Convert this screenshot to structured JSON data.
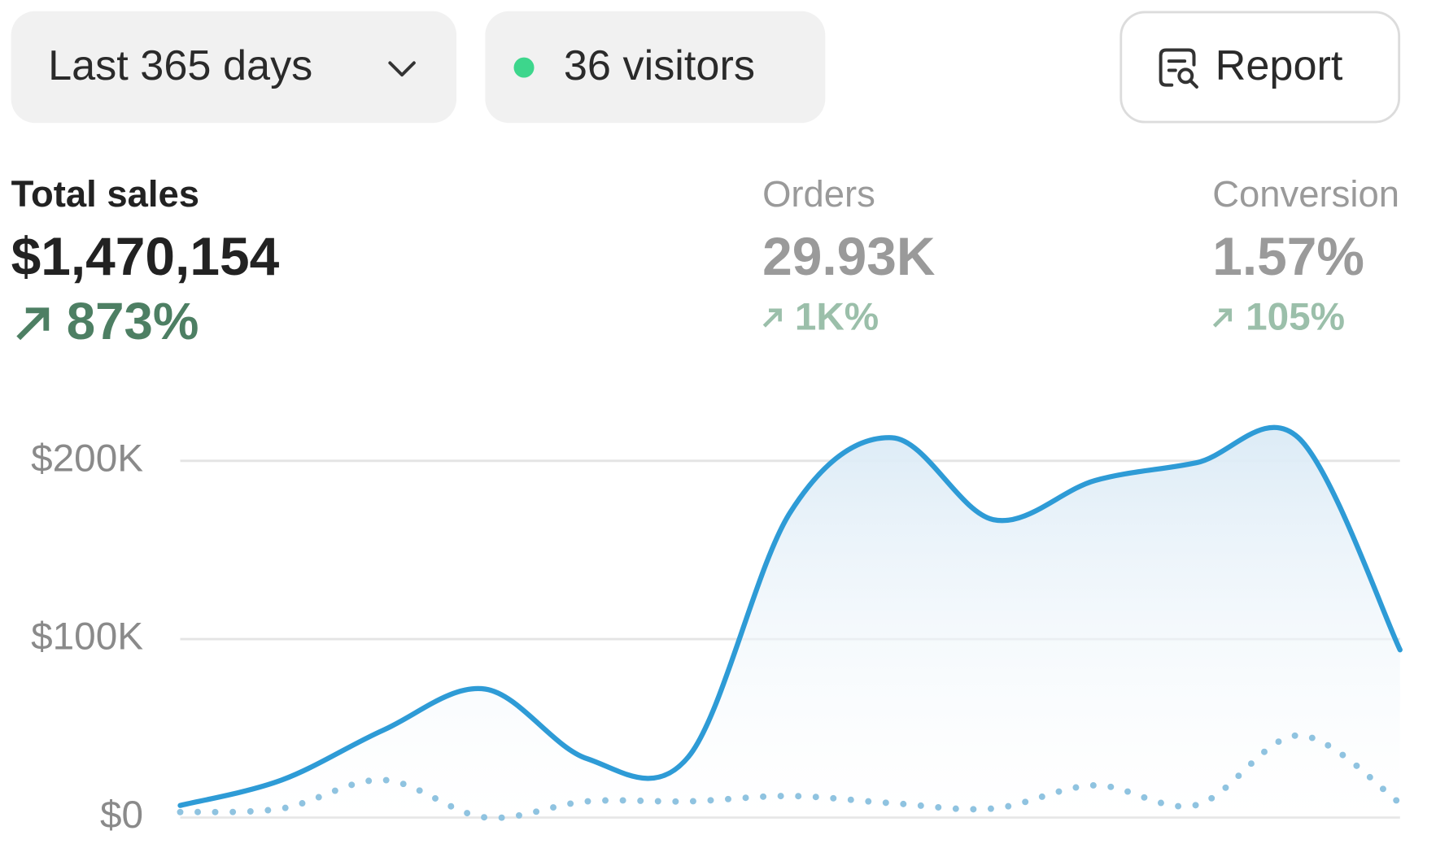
{
  "header": {
    "period": "Last 365 days",
    "visitors": "36 visitors",
    "report": "Report"
  },
  "metrics": [
    {
      "label": "Total sales",
      "value": "$1,470,154",
      "change": "873%"
    },
    {
      "label": "Orders",
      "value": "29.93K",
      "change": "1K%"
    },
    {
      "label": "Conversion",
      "value": "1.57%",
      "change": "105%"
    }
  ],
  "chart_data": {
    "type": "line",
    "categories": [
      null,
      null,
      null,
      null,
      null,
      null,
      null,
      null,
      null,
      null,
      null,
      null,
      null
    ],
    "series": [
      {
        "color": "#2e9bd6",
        "style": "solid",
        "values": [
          6700,
          21000,
          49000,
          72000,
          33000,
          34000,
          171000,
          213000,
          167000,
          189000,
          199000,
          213000,
          94000
        ]
      },
      {
        "color": "#8fc3e0",
        "style": "dotted",
        "values": [
          3000,
          5000,
          21000,
          0,
          9000,
          9000,
          12000,
          8000,
          5000,
          18000,
          7000,
          46000,
          8000
        ]
      }
    ],
    "ylim": [
      0,
      230000
    ],
    "yticks": [
      {
        "value": 0,
        "label": "$0"
      },
      {
        "value": 100000,
        "label": "$100K"
      },
      {
        "value": 200000,
        "label": "$200K"
      }
    ],
    "grid": true
  }
}
